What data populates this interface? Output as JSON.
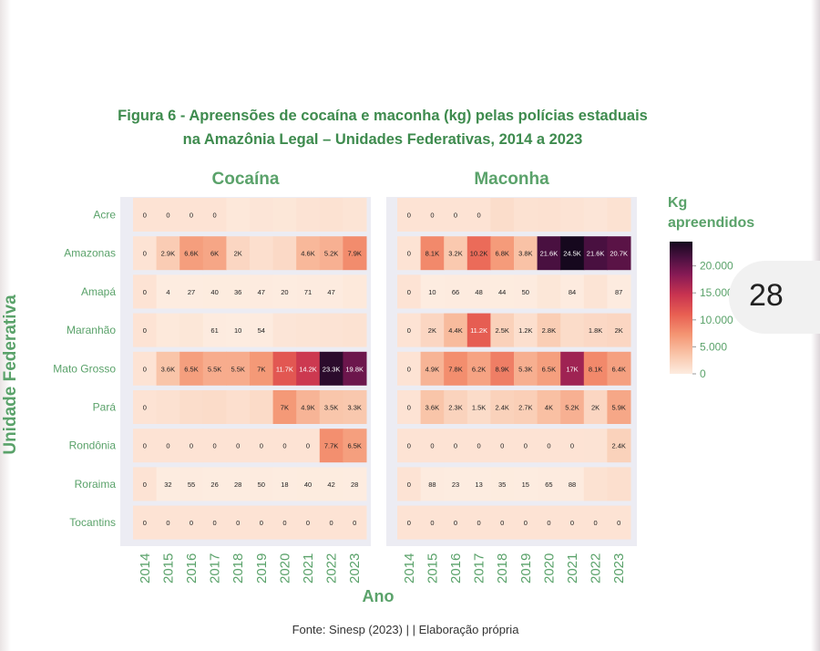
{
  "figure": {
    "title_line1": "Figura 6 -  Apreensões de cocaína e maconha (kg) pelas polícias estaduais",
    "title_line2": "na Amazônia Legal – Unidades Federativas, 2014 a 2023",
    "source": "Fonte: Sinesp (2023) | | Elaboração própria"
  },
  "page_number": "28",
  "colors": {
    "label_green": "#5aa26a",
    "title_green": "#3e8b4e",
    "panel_bg": "#ececf3",
    "empty_cell": "#fde3d4"
  },
  "chart_data": {
    "type": "heatmap",
    "xlabel": "Ano",
    "ylabel": "Unidade Federativa",
    "years": [
      "2014",
      "2015",
      "2016",
      "2017",
      "2018",
      "2019",
      "2020",
      "2021",
      "2022",
      "2023"
    ],
    "states": [
      "Acre",
      "Amazonas",
      "Amapá",
      "Maranhão",
      "Mato Grosso",
      "Pará",
      "Rondônia",
      "Roraima",
      "Tocantins"
    ],
    "colorbar": {
      "title": "Kg apreendidos",
      "min": 0,
      "max": 24500,
      "ticks": [
        "20.000",
        "15.000",
        "10.000",
        "5.000",
        "0"
      ],
      "tick_values": [
        20000,
        15000,
        10000,
        5000,
        0
      ]
    },
    "panels": [
      {
        "name": "Cocaína",
        "labels": [
          [
            "0",
            "0",
            "0",
            "0",
            "",
            "",
            "",
            "",
            "",
            ""
          ],
          [
            "0",
            "2.9K",
            "6.6K",
            "6K",
            "2K",
            "",
            "",
            "4.6K",
            "5.2K",
            "7.9K"
          ],
          [
            "0",
            "4",
            "27",
            "40",
            "36",
            "47",
            "20",
            "71",
            "47",
            ""
          ],
          [
            "0",
            "",
            "",
            "61",
            "10",
            "54",
            "",
            "",
            "",
            ""
          ],
          [
            "0",
            "3.6K",
            "6.5K",
            "5.5K",
            "5.5K",
            "7K",
            "11.7K",
            "14.2K",
            "23.3K",
            "19.8K"
          ],
          [
            "0",
            "",
            "",
            "",
            "",
            "",
            "7K",
            "4.9K",
            "3.5K",
            "3.3K"
          ],
          [
            "0",
            "0",
            "0",
            "0",
            "0",
            "0",
            "0",
            "0",
            "7.7K",
            "6.5K"
          ],
          [
            "0",
            "32",
            "55",
            "26",
            "28",
            "50",
            "18",
            "40",
            "42",
            "28"
          ],
          [
            "0",
            "0",
            "0",
            "0",
            "0",
            "0",
            "0",
            "0",
            "0",
            "0"
          ]
        ],
        "values": [
          [
            0,
            0,
            0,
            0,
            400,
            600,
            500,
            800,
            900,
            700
          ],
          [
            0,
            2900,
            6600,
            6000,
            2000,
            1200,
            1700,
            4600,
            5200,
            7900
          ],
          [
            0,
            4,
            27,
            40,
            36,
            47,
            20,
            71,
            47,
            300
          ],
          [
            0,
            300,
            500,
            61,
            10,
            54,
            600,
            700,
            800,
            900
          ],
          [
            0,
            3600,
            6500,
            5500,
            5500,
            7000,
            11700,
            14200,
            23300,
            19800
          ],
          [
            0,
            1000,
            1400,
            1500,
            1200,
            1600,
            7000,
            4900,
            3500,
            3300
          ],
          [
            0,
            0,
            0,
            0,
            0,
            0,
            0,
            0,
            7700,
            6500
          ],
          [
            0,
            32,
            55,
            26,
            28,
            50,
            18,
            40,
            42,
            28
          ],
          [
            0,
            0,
            0,
            0,
            0,
            0,
            0,
            0,
            0,
            0
          ]
        ]
      },
      {
        "name": "Maconha",
        "labels": [
          [
            "0",
            "0",
            "0",
            "0",
            "",
            "",
            "",
            "",
            "",
            ""
          ],
          [
            "0",
            "8.1K",
            "3.2K",
            "10.2K",
            "6.8K",
            "3.8K",
            "21.6K",
            "24.5K",
            "21.6K",
            "20.7K"
          ],
          [
            "0",
            "10",
            "66",
            "48",
            "44",
            "50",
            "",
            "84",
            "",
            "87"
          ],
          [
            "0",
            "2K",
            "4.4K",
            "11.2K",
            "2.5K",
            "1.2K",
            "2.8K",
            "",
            "1.8K",
            "2K"
          ],
          [
            "0",
            "4.9K",
            "7.8K",
            "6.2K",
            "8.9K",
            "5.3K",
            "6.5K",
            "17K",
            "8.1K",
            "6.4K"
          ],
          [
            "0",
            "3.6K",
            "2.3K",
            "1.5K",
            "2.4K",
            "2.7K",
            "4K",
            "5.2K",
            "2K",
            "5.9K"
          ],
          [
            "0",
            "0",
            "0",
            "0",
            "0",
            "0",
            "0",
            "0",
            "",
            "2.4K"
          ],
          [
            "0",
            "88",
            "23",
            "13",
            "35",
            "15",
            "65",
            "88",
            "",
            ""
          ],
          [
            "0",
            "0",
            "0",
            "0",
            "0",
            "0",
            "0",
            "0",
            "0",
            "0"
          ]
        ],
        "values": [
          [
            0,
            0,
            0,
            0,
            1400,
            900,
            1000,
            800,
            600,
            900
          ],
          [
            0,
            8100,
            3200,
            10200,
            6800,
            3800,
            21600,
            24500,
            21600,
            20700
          ],
          [
            0,
            10,
            66,
            48,
            44,
            50,
            500,
            84,
            700,
            87
          ],
          [
            0,
            2000,
            4400,
            11200,
            2500,
            1200,
            2800,
            1500,
            1800,
            2000
          ],
          [
            0,
            4900,
            7800,
            6200,
            8900,
            5300,
            6500,
            17000,
            8100,
            6400
          ],
          [
            0,
            3600,
            2300,
            1500,
            2400,
            2700,
            4000,
            5200,
            2000,
            5900
          ],
          [
            0,
            0,
            0,
            0,
            0,
            0,
            0,
            0,
            800,
            2400
          ],
          [
            0,
            88,
            23,
            13,
            35,
            15,
            65,
            88,
            900,
            1200
          ],
          [
            0,
            0,
            0,
            0,
            0,
            0,
            0,
            0,
            0,
            0
          ]
        ]
      }
    ]
  }
}
